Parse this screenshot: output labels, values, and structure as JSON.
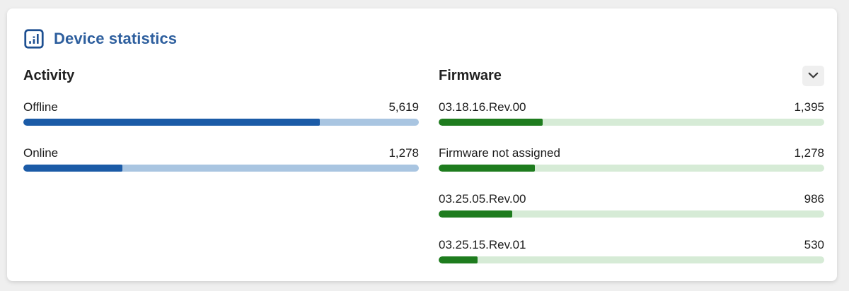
{
  "page": {
    "background_color": "#efefef"
  },
  "card": {
    "title": "Device statistics",
    "title_color": "#2e5f9e",
    "icon": "bar-chart-icon",
    "icon_color": "#1d4f91"
  },
  "activity": {
    "heading": "Activity",
    "bar_fill_color": "#1b5ba7",
    "bar_track_color": "#a9c5e1",
    "rows": [
      {
        "label": "Offline",
        "value": "5,619",
        "fill_pct": 75
      },
      {
        "label": "Online",
        "value": "1,278",
        "fill_pct": 25
      }
    ]
  },
  "firmware": {
    "heading": "Firmware",
    "collapse_icon": "chevron-down-icon",
    "collapse_btn_bg": "#efefef",
    "bar_fill_color": "#1e7c1e",
    "bar_track_color": "#d6ebd6",
    "rows": [
      {
        "label": "03.18.16.Rev.00",
        "value": "1,395",
        "fill_pct": 27
      },
      {
        "label": "Firmware not assigned",
        "value": "1,278",
        "fill_pct": 25
      },
      {
        "label": "03.25.05.Rev.00",
        "value": "986",
        "fill_pct": 19
      },
      {
        "label": "03.25.15.Rev.01",
        "value": "530",
        "fill_pct": 10
      }
    ]
  },
  "chart_data": [
    {
      "type": "bar",
      "orientation": "horizontal",
      "title": "Activity",
      "categories": [
        "Offline",
        "Online"
      ],
      "values": [
        5619,
        1278
      ],
      "value_labels": [
        "5,619",
        "1,278"
      ],
      "bar_color": "#1b5ba7",
      "track_color": "#a9c5e1"
    },
    {
      "type": "bar",
      "orientation": "horizontal",
      "title": "Firmware",
      "categories": [
        "03.18.16.Rev.00",
        "Firmware not assigned",
        "03.25.05.Rev.00",
        "03.25.15.Rev.01"
      ],
      "values": [
        1395,
        1278,
        986,
        530
      ],
      "value_labels": [
        "1,395",
        "1,278",
        "986",
        "530"
      ],
      "bar_color": "#1e7c1e",
      "track_color": "#d6ebd6"
    }
  ]
}
